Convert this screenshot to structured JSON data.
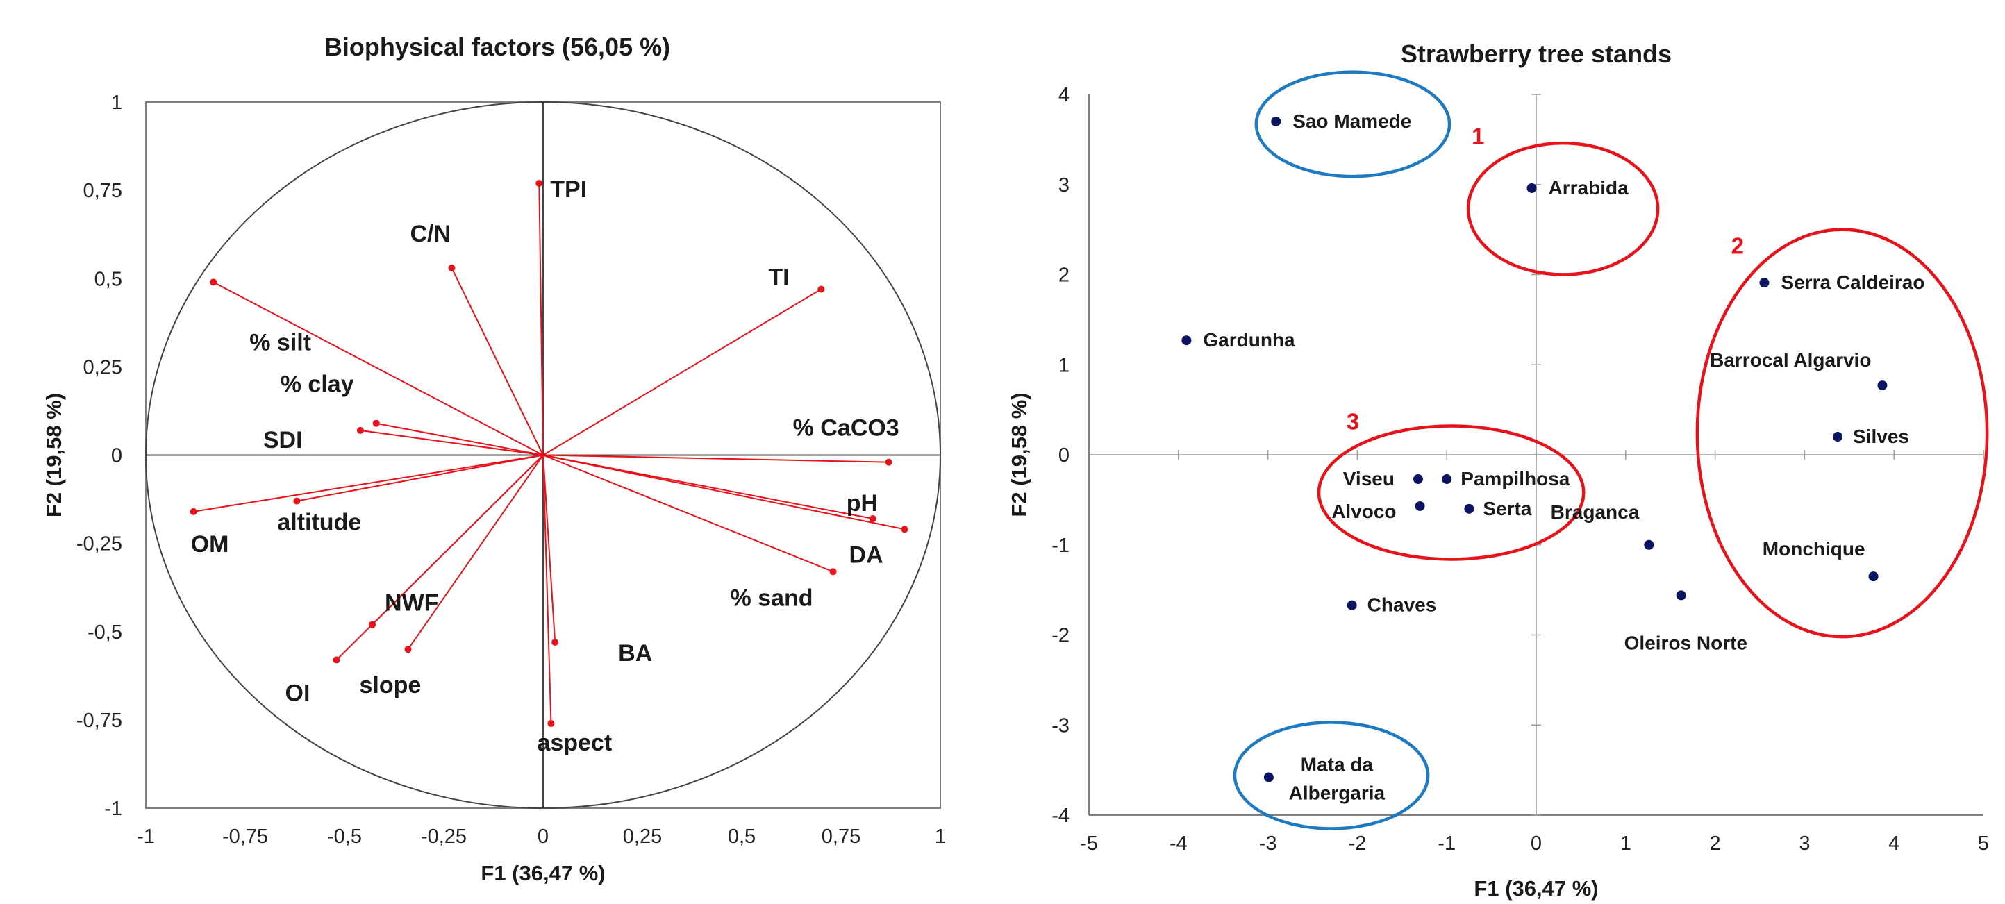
{
  "colors": {
    "vector": "#e8121b",
    "point": "#0b1461",
    "red_group": "#e8121b",
    "blue_group": "#1f7bc1",
    "axes": "#444444",
    "frame": "#7f7f7f",
    "circle": "#444444"
  },
  "chart_data": [
    {
      "type": "scatter",
      "subtype": "correlation-circle",
      "title": "Biophysical factors (56,05 %)",
      "xlabel": "F1 (36,47 %)",
      "ylabel": "F2 (19,58 %)",
      "xlim": [
        -1,
        1
      ],
      "ylim": [
        -1,
        1
      ],
      "xticks": [
        -1,
        -0.75,
        -0.5,
        -0.25,
        0,
        0.25,
        0.5,
        0.75,
        1
      ],
      "xtick_labels": [
        "-1",
        "-0,75",
        "-0,5",
        "-0,25",
        "0",
        "0,25",
        "0,5",
        "0,75",
        "1"
      ],
      "yticks": [
        1,
        0.75,
        0.5,
        0.25,
        0,
        -0.25,
        -0.5,
        -0.75,
        -1
      ],
      "ytick_labels": [
        "1",
        "0,75",
        "0,5",
        "0,25",
        "0",
        "-0,25",
        "-0,5",
        "-0,75",
        "-1"
      ],
      "grid": false,
      "variables": [
        {
          "name": "TPI",
          "x": -0.01,
          "y": 0.77
        },
        {
          "name": "C/N",
          "x": -0.23,
          "y": 0.53
        },
        {
          "name": "% silt",
          "x": -0.83,
          "y": 0.49
        },
        {
          "name": "TI",
          "x": 0.7,
          "y": 0.47
        },
        {
          "name": "% clay",
          "x": -0.42,
          "y": 0.09
        },
        {
          "name": "SDI",
          "x": -0.46,
          "y": 0.07
        },
        {
          "name": "% CaCO3",
          "x": 0.87,
          "y": -0.02
        },
        {
          "name": "pH",
          "x": 0.83,
          "y": -0.18
        },
        {
          "name": "DA",
          "x": 0.91,
          "y": -0.21
        },
        {
          "name": "% sand",
          "x": 0.73,
          "y": -0.33
        },
        {
          "name": "OM",
          "x": -0.88,
          "y": -0.16
        },
        {
          "name": "altitude",
          "x": -0.62,
          "y": -0.13
        },
        {
          "name": "NWF",
          "x": -0.43,
          "y": -0.48
        },
        {
          "name": "OI",
          "x": -0.52,
          "y": -0.58
        },
        {
          "name": "slope",
          "x": -0.34,
          "y": -0.55
        },
        {
          "name": "BA",
          "x": 0.03,
          "y": -0.53
        },
        {
          "name": "aspect",
          "x": 0.02,
          "y": -0.76
        }
      ]
    },
    {
      "type": "scatter",
      "title": "Strawberry tree stands",
      "xlabel": "F1 (36,47 %)",
      "ylabel": "F2 (19,58 %)",
      "xlim": [
        -5,
        5
      ],
      "ylim": [
        -4,
        4
      ],
      "xticks": [
        -5,
        -4,
        -3,
        -2,
        -1,
        0,
        1,
        2,
        3,
        4,
        5
      ],
      "yticks": [
        4,
        3,
        2,
        1,
        0,
        -1,
        -2,
        -3,
        -4
      ],
      "grid": false,
      "points": [
        {
          "name": "Sao Mamede",
          "x": -2.91,
          "y": 3.7
        },
        {
          "name": "Arrabida",
          "x": -0.05,
          "y": 2.96
        },
        {
          "name": "Serra Caldeirao",
          "x": 2.55,
          "y": 1.91
        },
        {
          "name": "Gardunha",
          "x": -3.91,
          "y": 1.27
        },
        {
          "name": "Barrocal Algarvio",
          "x": 3.87,
          "y": 0.77
        },
        {
          "name": "Silves",
          "x": 3.37,
          "y": 0.2
        },
        {
          "name": "Viseu",
          "x": -1.32,
          "y": -0.27
        },
        {
          "name": "Pampilhosa",
          "x": -1.0,
          "y": -0.27
        },
        {
          "name": "Alvoco",
          "x": -1.3,
          "y": -0.57
        },
        {
          "name": "Serta",
          "x": -0.75,
          "y": -0.6
        },
        {
          "name": "Braganca",
          "x": 1.26,
          "y": -1.0
        },
        {
          "name": "Monchique",
          "x": 3.77,
          "y": -1.35
        },
        {
          "name": "Oleiros Norte",
          "x": 1.62,
          "y": -1.56
        },
        {
          "name": "Chaves",
          "x": -2.06,
          "y": -1.67
        },
        {
          "name": "Mata da Albergaria",
          "x": -2.99,
          "y": -3.58
        }
      ],
      "groups": [
        {
          "label": "1",
          "color": "red",
          "members": [
            "Arrabida"
          ]
        },
        {
          "label": "2",
          "color": "red",
          "members": [
            "Serra Caldeirao",
            "Barrocal Algarvio",
            "Silves",
            "Monchique"
          ]
        },
        {
          "label": "3",
          "color": "red",
          "members": [
            "Viseu",
            "Pampilhosa",
            "Alvoco",
            "Serta"
          ]
        },
        {
          "label": "",
          "color": "blue",
          "members": [
            "Sao Mamede"
          ]
        },
        {
          "label": "",
          "color": "blue",
          "members": [
            "Mata da Albergaria"
          ]
        }
      ]
    }
  ]
}
